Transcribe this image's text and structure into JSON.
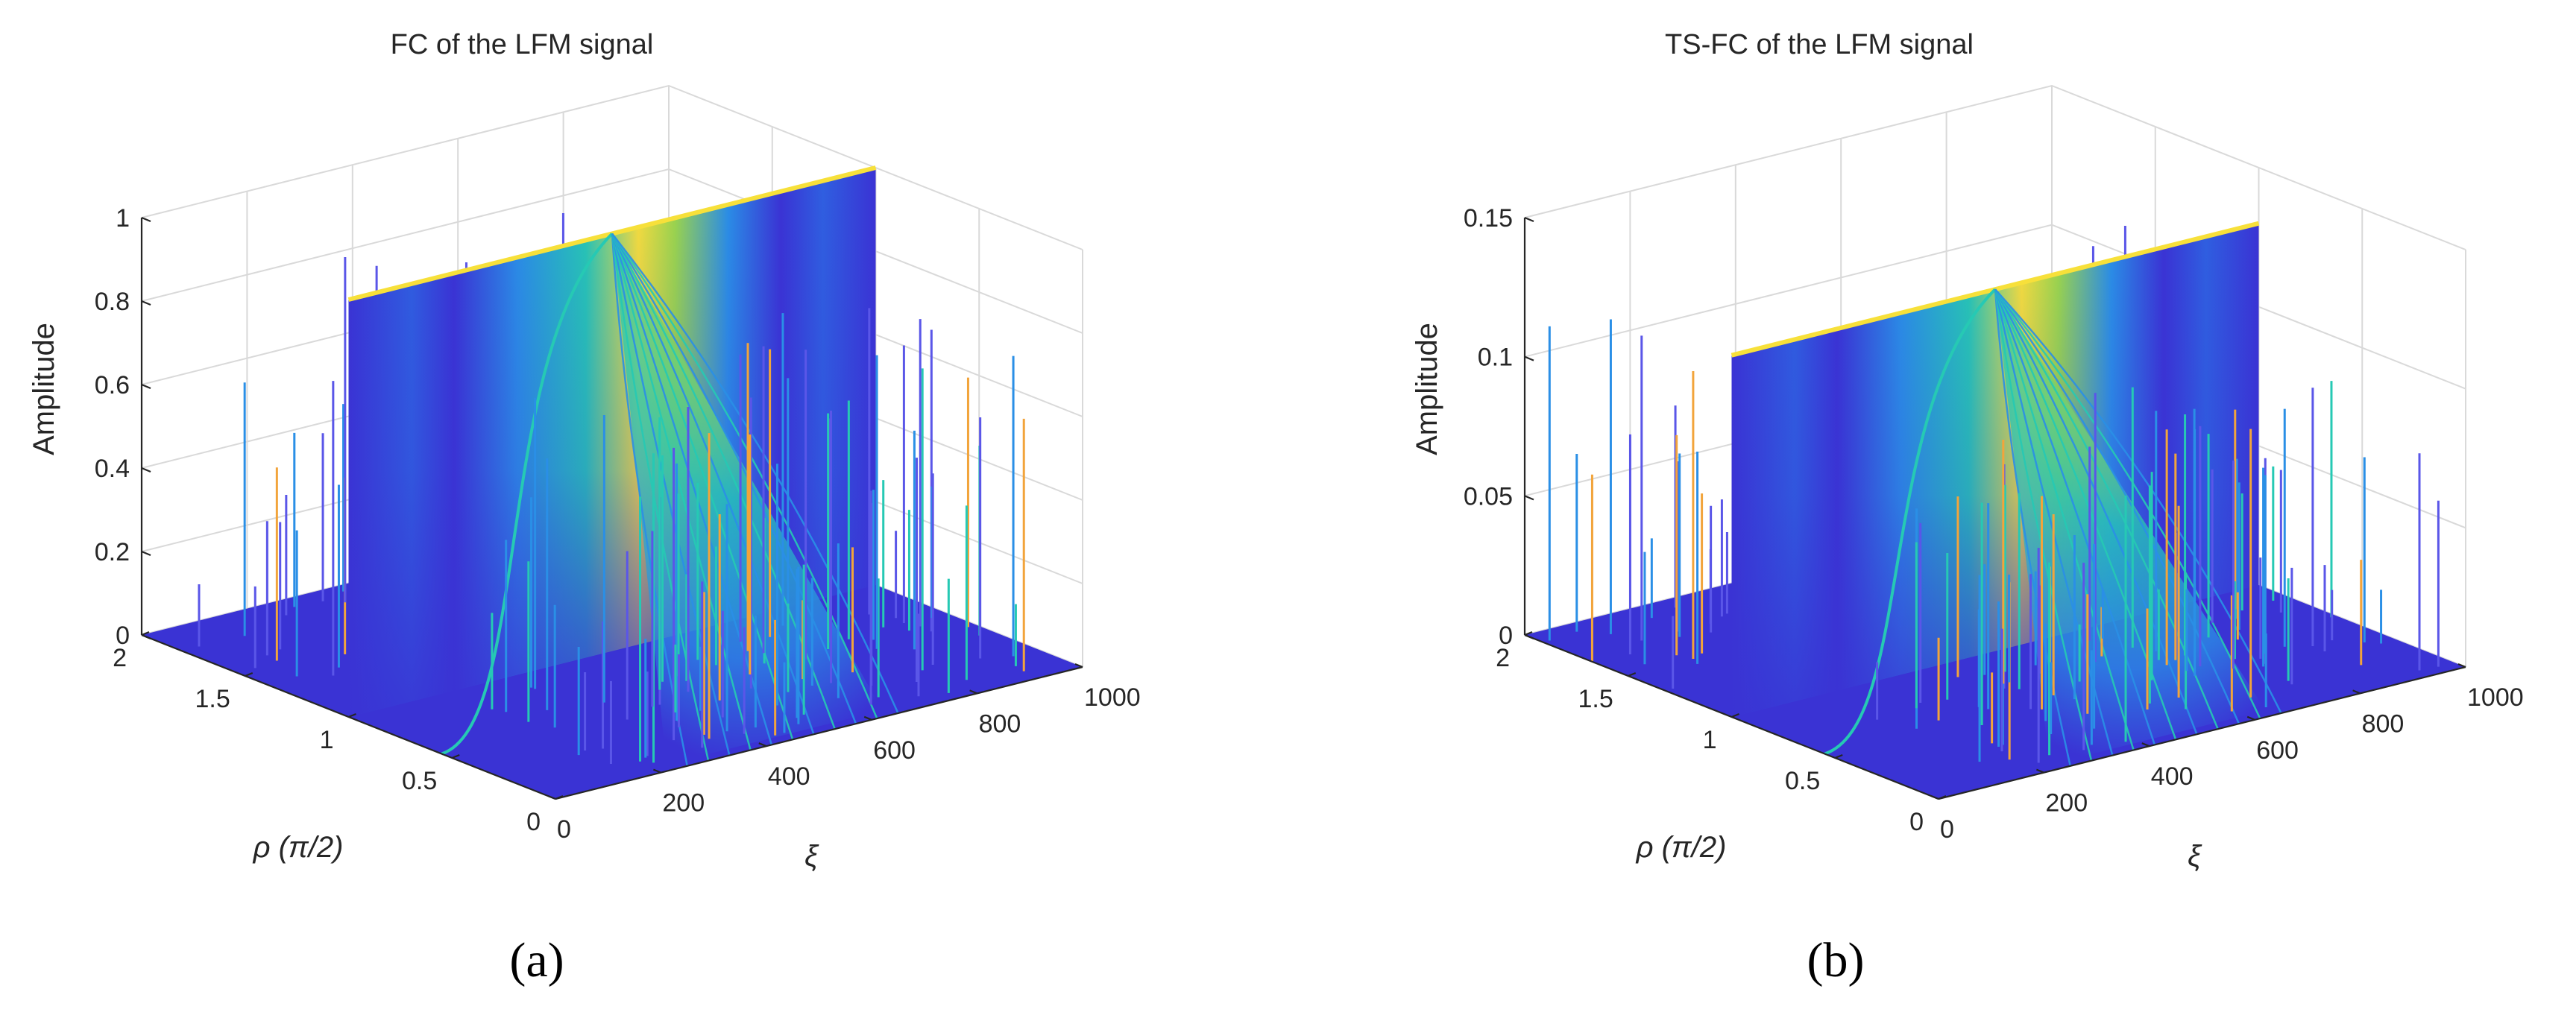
{
  "figure": {
    "colors": {
      "base": "#3a33d4",
      "mid": "#2a8fe6",
      "cyan": "#26c9b4",
      "peak": "#f7e03a",
      "orange": "#f2a43b"
    }
  },
  "chart_data": [
    {
      "type": "surface3d",
      "panel_label": "(a)",
      "title": "FC of the LFM signal",
      "zlabel": "Amplitude",
      "xlabel": "ξ",
      "ylabel": "ρ (π/2)",
      "zlim": [
        0,
        1
      ],
      "xlim": [
        0,
        1000
      ],
      "ylim": [
        0,
        2
      ],
      "zticks": [
        "0",
        "0.2",
        "0.4",
        "0.6",
        "0.8",
        "1"
      ],
      "xticks": [
        "0",
        "200",
        "400",
        "600",
        "800",
        "1000"
      ],
      "yticks": [
        "0",
        "0.5",
        "1",
        "1.5",
        "2"
      ],
      "grid": true,
      "peak": {
        "rho": 1.0,
        "xi": 500,
        "amplitude": 1.0
      },
      "wall": {
        "rho": 1.0,
        "xi_range": [
          0,
          1000
        ],
        "top_amplitude": 1.0
      }
    },
    {
      "type": "surface3d",
      "panel_label": "(b)",
      "title": "TS-FC of the LFM signal",
      "zlabel": "Amplitude",
      "xlabel": "ξ",
      "ylabel": "ρ (π/2)",
      "zlim": [
        0,
        0.15
      ],
      "xlim": [
        0,
        1000
      ],
      "ylim": [
        0,
        2
      ],
      "zticks": [
        "0",
        "0.05",
        "0.1",
        "0.15"
      ],
      "xticks": [
        "0",
        "200",
        "400",
        "600",
        "800",
        "1000"
      ],
      "yticks": [
        "0",
        "0.5",
        "1",
        "1.5",
        "2"
      ],
      "grid": true,
      "peak": {
        "rho": 1.0,
        "xi": 500,
        "amplitude": 0.13
      },
      "wall": {
        "rho": 1.0,
        "xi_range": [
          0,
          1000
        ],
        "top_amplitude": 0.13
      }
    }
  ]
}
